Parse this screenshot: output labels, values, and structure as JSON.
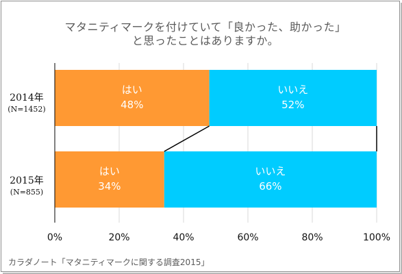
{
  "title": {
    "line1": "マタニティマークを付けていて「良かった、助かった」",
    "line2": "と思ったことはありますか。"
  },
  "source": "カラダノート「マタニティマークに関する調査2015」",
  "colors": {
    "yes": "#ff9933",
    "no": "#00ccff",
    "grid": "#d9d9d9",
    "axis": "#000000"
  },
  "chart_data": {
    "type": "bar",
    "orientation": "horizontal-stacked-100",
    "categories": [
      {
        "year": "2014年",
        "sample": "(N=1452)"
      },
      {
        "year": "2015年",
        "sample": "(N=855)"
      }
    ],
    "series": [
      {
        "name": "はい",
        "values": [
          48,
          34
        ],
        "labels": [
          "48%",
          "34%"
        ]
      },
      {
        "name": "いいえ",
        "values": [
          52,
          66
        ],
        "labels": [
          "52%",
          "66%"
        ]
      }
    ],
    "xlim": [
      0,
      100
    ],
    "xticks": [
      "0%",
      "20%",
      "40%",
      "60%",
      "80%",
      "100%"
    ],
    "series_lines": true,
    "grid": true
  }
}
